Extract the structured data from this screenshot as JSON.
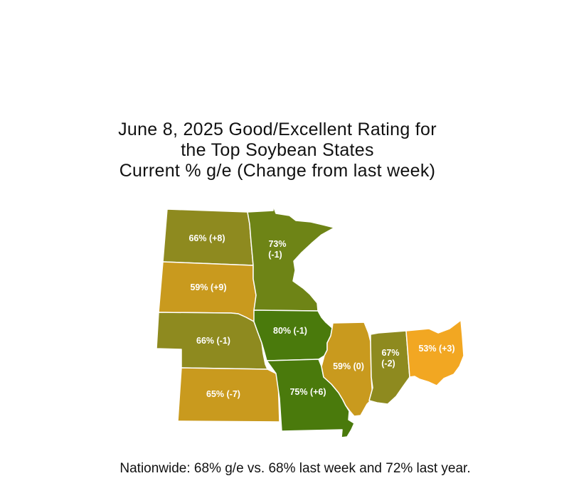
{
  "title": {
    "line1": "June 8, 2025 Good/Excellent Rating for",
    "line2": "the Top Soybean States",
    "line3": "Current % g/e (Change from last week)"
  },
  "colors": {
    "olive": "#8e8a1f",
    "mustard": "#c99a1e",
    "mid_green": "#6e8416",
    "dark_green": "#4a7a0c",
    "orange": "#f2a722"
  },
  "states": {
    "north_dakota": {
      "label": "66% (+8)"
    },
    "south_dakota": {
      "label": "59% (+9)"
    },
    "nebraska": {
      "label": "66% (-1)"
    },
    "kansas": {
      "label": "65% (-7)"
    },
    "minnesota": {
      "label_line1": "73%",
      "label_line2": "(-1)"
    },
    "iowa": {
      "label": "80% (-1)"
    },
    "missouri": {
      "label": "75% (+6)"
    },
    "illinois": {
      "label": "59% (0)"
    },
    "indiana": {
      "label_line1": "67%",
      "label_line2": "(-2)"
    },
    "ohio": {
      "label": "53% (+3)"
    }
  },
  "footer": "Nationwide: 68% g/e vs. 68% last week and 72% last year."
}
